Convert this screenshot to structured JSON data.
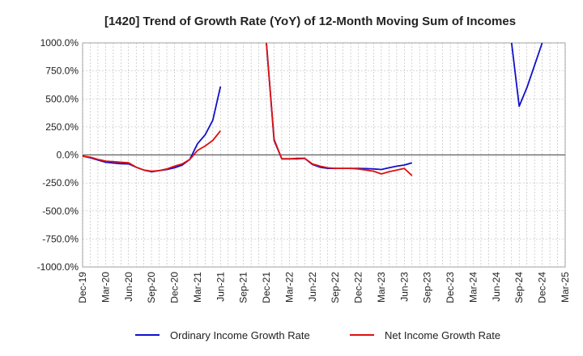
{
  "chart_data": {
    "type": "line",
    "title": "[1420]  Trend of Growth Rate (YoY) of 12-Month Moving Sum of Incomes",
    "xlabel": "",
    "ylabel": "",
    "ylim": [
      -1000,
      1000
    ],
    "yticks": [
      1000,
      750,
      500,
      250,
      0,
      -250,
      -500,
      -750,
      -1000
    ],
    "ytick_labels": [
      "1000.0%",
      "750.0%",
      "500.0%",
      "250.0%",
      "0.0%",
      "-250.0%",
      "-500.0%",
      "-750.0%",
      "-1000.0%"
    ],
    "x_range": [
      "2019-12",
      "2025-03"
    ],
    "xtick_labels": [
      "Dec-19",
      "Mar-20",
      "Jun-20",
      "Sep-20",
      "Dec-20",
      "Mar-21",
      "Jun-21",
      "Sep-21",
      "Dec-21",
      "Mar-22",
      "Jun-22",
      "Sep-22",
      "Dec-22",
      "Mar-23",
      "Jun-23",
      "Sep-23",
      "Dec-23",
      "Mar-24",
      "Jun-24",
      "Sep-24",
      "Dec-24",
      "Mar-25"
    ],
    "grid": true,
    "legend_position": "bottom",
    "series": [
      {
        "name": "Ordinary Income Growth Rate",
        "color": "#1010cc",
        "points": [
          [
            "2019-12",
            -10
          ],
          [
            "2020-01",
            -25
          ],
          [
            "2020-02",
            -45
          ],
          [
            "2020-03",
            -65
          ],
          [
            "2020-04",
            -72
          ],
          [
            "2020-05",
            -78
          ],
          [
            "2020-06",
            -80
          ],
          [
            "2020-07",
            -110
          ],
          [
            "2020-08",
            -135
          ],
          [
            "2020-09",
            -150
          ],
          [
            "2020-10",
            -140
          ],
          [
            "2020-11",
            -130
          ],
          [
            "2020-12",
            -115
          ],
          [
            "2021-01",
            -90
          ],
          [
            "2021-02",
            -40
          ],
          [
            "2021-03",
            100
          ],
          [
            "2021-04",
            180
          ],
          [
            "2021-05",
            310
          ],
          [
            "2021-06",
            610
          ],
          null,
          [
            "2021-12",
            1000
          ],
          [
            "2022-01",
            130
          ],
          [
            "2022-02",
            -35
          ],
          [
            "2022-03",
            -35
          ],
          [
            "2022-04",
            -35
          ],
          [
            "2022-05",
            -30
          ],
          [
            "2022-06",
            -85
          ],
          [
            "2022-07",
            -110
          ],
          [
            "2022-08",
            -120
          ],
          [
            "2022-09",
            -120
          ],
          [
            "2022-10",
            -120
          ],
          [
            "2022-11",
            -120
          ],
          [
            "2022-12",
            -120
          ],
          [
            "2023-01",
            -122
          ],
          [
            "2023-02",
            -125
          ],
          [
            "2023-03",
            -130
          ],
          [
            "2023-04",
            -115
          ],
          [
            "2023-05",
            -100
          ],
          [
            "2023-06",
            -90
          ],
          [
            "2023-07",
            -70
          ],
          null,
          [
            "2024-08",
            1000
          ],
          [
            "2024-09",
            435
          ],
          [
            "2024-10",
            600
          ],
          [
            "2024-11",
            800
          ],
          [
            "2024-12",
            1000
          ]
        ]
      },
      {
        "name": "Net Income Growth Rate",
        "color": "#e01010",
        "points": [
          [
            "2019-12",
            -10
          ],
          [
            "2020-01",
            -20
          ],
          [
            "2020-02",
            -40
          ],
          [
            "2020-03",
            -55
          ],
          [
            "2020-04",
            -60
          ],
          [
            "2020-05",
            -65
          ],
          [
            "2020-06",
            -70
          ],
          [
            "2020-07",
            -110
          ],
          [
            "2020-08",
            -135
          ],
          [
            "2020-09",
            -145
          ],
          [
            "2020-10",
            -140
          ],
          [
            "2020-11",
            -125
          ],
          [
            "2020-12",
            -100
          ],
          [
            "2021-01",
            -80
          ],
          [
            "2021-02",
            -40
          ],
          [
            "2021-03",
            40
          ],
          [
            "2021-04",
            80
          ],
          [
            "2021-05",
            130
          ],
          [
            "2021-06",
            215
          ],
          null,
          [
            "2021-12",
            1000
          ],
          [
            "2022-01",
            140
          ],
          [
            "2022-02",
            -35
          ],
          [
            "2022-03",
            -35
          ],
          [
            "2022-04",
            -30
          ],
          [
            "2022-05",
            -30
          ],
          [
            "2022-06",
            -80
          ],
          [
            "2022-07",
            -100
          ],
          [
            "2022-08",
            -115
          ],
          [
            "2022-09",
            -120
          ],
          [
            "2022-10",
            -120
          ],
          [
            "2022-11",
            -120
          ],
          [
            "2022-12",
            -125
          ],
          [
            "2023-01",
            -135
          ],
          [
            "2023-02",
            -145
          ],
          [
            "2023-03",
            -170
          ],
          [
            "2023-04",
            -150
          ],
          [
            "2023-05",
            -135
          ],
          [
            "2023-06",
            -120
          ],
          [
            "2023-07",
            -185
          ]
        ]
      }
    ]
  }
}
